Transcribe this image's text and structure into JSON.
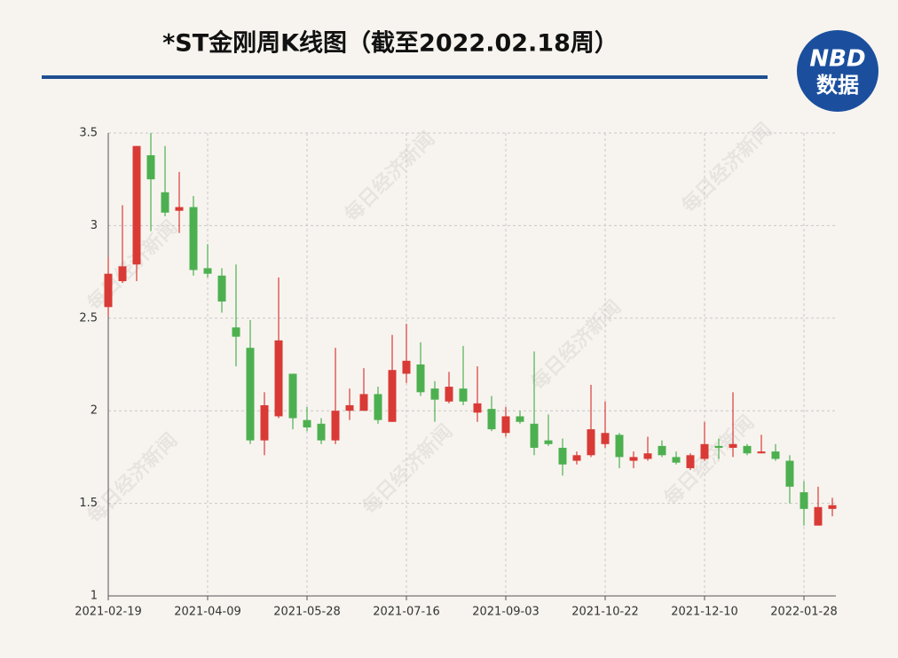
{
  "chart_data": {
    "type": "candlestick",
    "title": "*ST金刚周K线图（截至2022.02.18周）",
    "logo": [
      "NBD",
      "数据"
    ],
    "watermark": "每日经济新闻",
    "categories": [
      "2021-02-19",
      null,
      null,
      null,
      null,
      null,
      null,
      "2021-04-09",
      null,
      null,
      null,
      null,
      null,
      null,
      "2021-05-28",
      null,
      null,
      null,
      null,
      null,
      null,
      "2021-07-16",
      null,
      null,
      null,
      null,
      null,
      null,
      "2021-09-03",
      null,
      null,
      null,
      null,
      null,
      null,
      "2021-10-22",
      null,
      null,
      null,
      null,
      null,
      null,
      "2021-12-10",
      null,
      null,
      null,
      null,
      null,
      null,
      "2022-01-28",
      null,
      null
    ],
    "open": [
      2.56,
      2.7,
      2.79,
      3.38,
      3.18,
      3.08,
      3.1,
      2.77,
      2.73,
      2.45,
      2.34,
      1.84,
      1.97,
      2.2,
      1.95,
      1.93,
      1.84,
      2.0,
      2.0,
      2.09,
      1.94,
      2.2,
      2.25,
      2.12,
      2.05,
      2.12,
      1.99,
      2.01,
      1.88,
      1.97,
      1.93,
      1.84,
      1.8,
      1.73,
      1.76,
      1.82,
      1.87,
      1.73,
      1.74,
      1.81,
      1.75,
      1.69,
      1.74,
      1.81,
      1.8,
      1.81,
      1.77,
      1.78,
      1.73,
      1.56,
      1.38,
      1.47
    ],
    "close": [
      2.74,
      2.78,
      3.43,
      3.25,
      3.07,
      3.1,
      2.76,
      2.74,
      2.59,
      2.4,
      1.84,
      2.03,
      2.38,
      1.96,
      1.91,
      1.84,
      2.0,
      2.03,
      2.09,
      1.95,
      2.22,
      2.27,
      2.1,
      2.06,
      2.13,
      2.05,
      2.04,
      1.9,
      1.97,
      1.94,
      1.8,
      1.82,
      1.71,
      1.76,
      1.9,
      1.88,
      1.75,
      1.75,
      1.77,
      1.76,
      1.72,
      1.76,
      1.82,
      1.8,
      1.82,
      1.77,
      1.78,
      1.74,
      1.59,
      1.47,
      1.48,
      1.49
    ],
    "high": [
      2.83,
      3.11,
      3.43,
      3.5,
      3.43,
      3.29,
      3.16,
      2.9,
      2.77,
      2.79,
      2.49,
      2.1,
      2.72,
      2.2,
      2.02,
      1.96,
      2.34,
      2.12,
      2.23,
      2.13,
      2.41,
      2.47,
      2.37,
      2.16,
      2.21,
      2.35,
      2.24,
      2.08,
      2.02,
      2.0,
      2.32,
      1.98,
      1.85,
      1.78,
      2.14,
      2.05,
      1.88,
      1.78,
      1.86,
      1.84,
      1.78,
      1.77,
      1.94,
      1.85,
      2.1,
      1.82,
      1.87,
      1.82,
      1.76,
      1.62,
      1.59,
      1.53
    ],
    "low": [
      2.51,
      2.69,
      2.7,
      2.97,
      3.05,
      2.96,
      2.73,
      2.72,
      2.53,
      2.24,
      1.82,
      1.76,
      1.96,
      1.9,
      1.89,
      1.82,
      1.82,
      1.95,
      2.0,
      1.93,
      1.94,
      2.15,
      2.08,
      1.94,
      2.04,
      2.03,
      1.94,
      1.89,
      1.86,
      1.93,
      1.76,
      1.81,
      1.65,
      1.71,
      1.75,
      1.8,
      1.69,
      1.69,
      1.73,
      1.75,
      1.71,
      1.68,
      1.73,
      1.74,
      1.75,
      1.76,
      1.77,
      1.73,
      1.5,
      1.38,
      1.38,
      1.43
    ],
    "up_color": "#d93a36",
    "down_color": "#4db050",
    "ylim": [
      1,
      3.5
    ],
    "yticks": [
      1,
      1.5,
      2,
      2.5,
      3,
      3.5
    ],
    "grid": true
  }
}
